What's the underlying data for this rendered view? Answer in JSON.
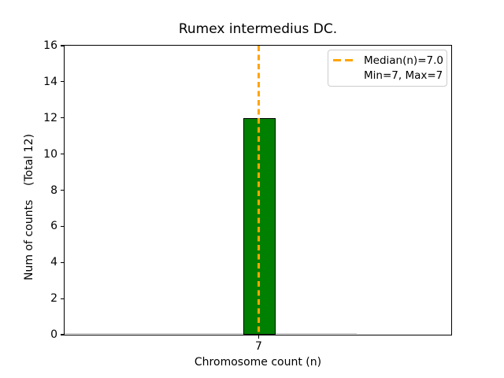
{
  "chart_data": {
    "type": "bar",
    "title": "Rumex intermedius DC.",
    "xlabel": "Chromosome count (n)",
    "ylabel": "Num of counts    (Total 12)",
    "total_count": 12,
    "categories": [
      "7"
    ],
    "values": [
      12
    ],
    "ylim": [
      0,
      16
    ],
    "yticks": [
      0,
      2,
      4,
      6,
      8,
      10,
      12,
      14,
      16
    ],
    "xticks": [
      "7"
    ],
    "grid": false,
    "background_color": "#ffffff",
    "bar_color": "#008000",
    "bar_edge_color": "#000000",
    "zero_bins_baseline_color": "#c4c4c4",
    "median_line": {
      "value": 7.0,
      "color": "#ffa500",
      "style": "dashed"
    },
    "legend": {
      "position": "upper right",
      "entries": [
        {
          "label": "Median(n)=7.0",
          "handle": "orange-dashed-line",
          "color": "#ffa500"
        },
        {
          "label": "Min=7, Max=7",
          "handle": "none",
          "color": ""
        }
      ]
    }
  }
}
